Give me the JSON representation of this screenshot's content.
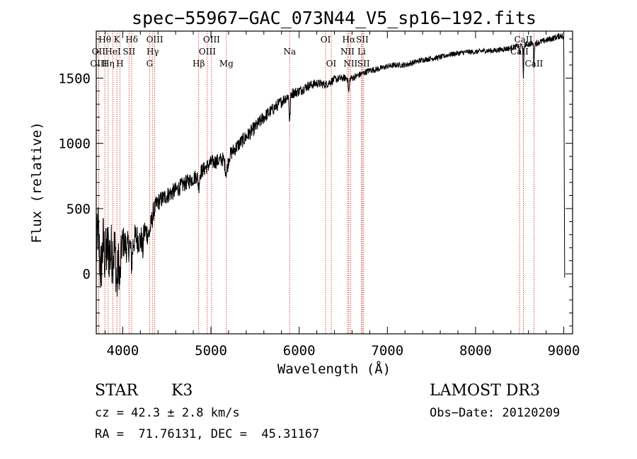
{
  "chart_data": {
    "type": "line",
    "title": "spec−55967−GAC_073N44_V5_sp16−192.fits",
    "xlabel": "Wavelength (Å)",
    "ylabel": "Flux (relative)",
    "xlim": [
      3700,
      9100
    ],
    "ylim": [
      -460,
      1860
    ],
    "x_ticks": [
      4000,
      5000,
      6000,
      7000,
      8000,
      9000
    ],
    "y_ticks": [
      0,
      500,
      1000,
      1500
    ],
    "series": [
      {
        "name": "flux",
        "anchors": [
          [
            3700,
            150
          ],
          [
            3720,
            350
          ],
          [
            3750,
            0
          ],
          [
            3780,
            250
          ],
          [
            3800,
            100
          ],
          [
            3830,
            200
          ],
          [
            3860,
            150
          ],
          [
            3900,
            180
          ],
          [
            3950,
            120
          ],
          [
            4000,
            250
          ],
          [
            4050,
            200
          ],
          [
            4100,
            230
          ],
          [
            4150,
            280
          ],
          [
            4200,
            250
          ],
          [
            4250,
            330
          ],
          [
            4300,
            300
          ],
          [
            4350,
            480
          ],
          [
            4400,
            550
          ],
          [
            4500,
            600
          ],
          [
            4600,
            640
          ],
          [
            4700,
            690
          ],
          [
            4800,
            730
          ],
          [
            4900,
            790
          ],
          [
            5000,
            850
          ],
          [
            5100,
            870
          ],
          [
            5200,
            900
          ],
          [
            5300,
            980
          ],
          [
            5400,
            1050
          ],
          [
            5500,
            1120
          ],
          [
            5600,
            1200
          ],
          [
            5700,
            1260
          ],
          [
            5800,
            1320
          ],
          [
            5900,
            1380
          ],
          [
            6000,
            1400
          ],
          [
            6100,
            1440
          ],
          [
            6200,
            1460
          ],
          [
            6300,
            1450
          ],
          [
            6400,
            1490
          ],
          [
            6500,
            1500
          ],
          [
            6600,
            1500
          ],
          [
            6700,
            1530
          ],
          [
            6800,
            1560
          ],
          [
            6900,
            1570
          ],
          [
            7000,
            1590
          ],
          [
            7100,
            1600
          ],
          [
            7200,
            1600
          ],
          [
            7300,
            1620
          ],
          [
            7400,
            1640
          ],
          [
            7500,
            1650
          ],
          [
            7600,
            1660
          ],
          [
            7700,
            1680
          ],
          [
            7800,
            1690
          ],
          [
            7900,
            1700
          ],
          [
            8000,
            1700
          ],
          [
            8100,
            1710
          ],
          [
            8200,
            1710
          ],
          [
            8300,
            1720
          ],
          [
            8400,
            1730
          ],
          [
            8500,
            1750
          ],
          [
            8600,
            1760
          ],
          [
            8700,
            1770
          ],
          [
            8800,
            1790
          ],
          [
            8900,
            1810
          ],
          [
            8980,
            1830
          ],
          [
            9000,
            1790
          ],
          [
            9010,
            -20
          ]
        ],
        "noise": [
          [
            3700,
            220
          ],
          [
            3900,
            250
          ],
          [
            4000,
            130
          ],
          [
            4200,
            110
          ],
          [
            4400,
            70
          ],
          [
            4800,
            60
          ],
          [
            5500,
            55
          ],
          [
            6000,
            40
          ],
          [
            6500,
            28
          ],
          [
            7000,
            22
          ],
          [
            8000,
            20
          ],
          [
            9000,
            25
          ]
        ],
        "absorption": [
          [
            3934,
            240,
            8
          ],
          [
            3969,
            220,
            8
          ],
          [
            4102,
            150,
            8
          ],
          [
            4227,
            120,
            6
          ],
          [
            4861,
            100,
            8
          ],
          [
            5175,
            110,
            15
          ],
          [
            5893,
            210,
            6
          ],
          [
            6563,
            110,
            6
          ],
          [
            8498,
            80,
            4
          ],
          [
            8542,
            270,
            4
          ],
          [
            8662,
            180,
            4
          ]
        ]
      }
    ],
    "spectral_lines": [
      {
        "name": "Hθ",
        "wavelength": 3798,
        "row": 0
      },
      {
        "name": "OII",
        "wavelength": 3727,
        "row": 1
      },
      {
        "name": "OIII",
        "wavelength": 3727,
        "row": 2
      },
      {
        "name": "Hη",
        "wavelength": 3835,
        "row": 2
      },
      {
        "name": "K",
        "wavelength": 3934,
        "row": 0
      },
      {
        "name": "HeI",
        "wavelength": 3889,
        "row": 1
      },
      {
        "name": "H",
        "wavelength": 3969,
        "row": 2
      },
      {
        "name": "SII",
        "wavelength": 4072,
        "row": 1
      },
      {
        "name": "Hδ",
        "wavelength": 4102,
        "row": 0
      },
      {
        "name": "OIII",
        "wavelength": 4363,
        "row": 0
      },
      {
        "name": "Hγ",
        "wavelength": 4340,
        "row": 1
      },
      {
        "name": "G",
        "wavelength": 4305,
        "row": 2
      },
      {
        "name": "Hβ",
        "wavelength": 4861,
        "row": 2
      },
      {
        "name": "OIII",
        "wavelength": 5007,
        "row": 0
      },
      {
        "name": "OIII",
        "wavelength": 4959,
        "row": 1
      },
      {
        "name": "Mg",
        "wavelength": 5175,
        "row": 2
      },
      {
        "name": "Na",
        "wavelength": 5893,
        "row": 1
      },
      {
        "name": "OI",
        "wavelength": 6300,
        "row": 0
      },
      {
        "name": "OI",
        "wavelength": 6364,
        "row": 2
      },
      {
        "name": "Hα",
        "wavelength": 6563,
        "row": 0
      },
      {
        "name": "NII",
        "wavelength": 6548,
        "row": 1
      },
      {
        "name": "NII",
        "wavelength": 6583,
        "row": 2
      },
      {
        "name": "SII",
        "wavelength": 6716,
        "row": 0
      },
      {
        "name": "Li",
        "wavelength": 6708,
        "row": 1
      },
      {
        "name": "SII",
        "wavelength": 6731,
        "row": 2
      },
      {
        "name": "CaII",
        "wavelength": 8542,
        "row": 0
      },
      {
        "name": "CaII",
        "wavelength": 8498,
        "row": 1
      },
      {
        "name": "CaII",
        "wavelength": 8662,
        "row": 2
      }
    ]
  },
  "info": {
    "object_class": "STAR",
    "subclass": "K3",
    "redshift": "cz = 42.3 ± 2.8 km/s",
    "coords": "RA =  71.76131, DEC =  45.31167",
    "survey": "LAMOST DR3",
    "obs_date": "Obs−Date: 20120209"
  },
  "colors": {
    "spectrum": "#000000",
    "line_markers": "#cc2222",
    "axes": "#000000",
    "background": "#ffffff"
  }
}
